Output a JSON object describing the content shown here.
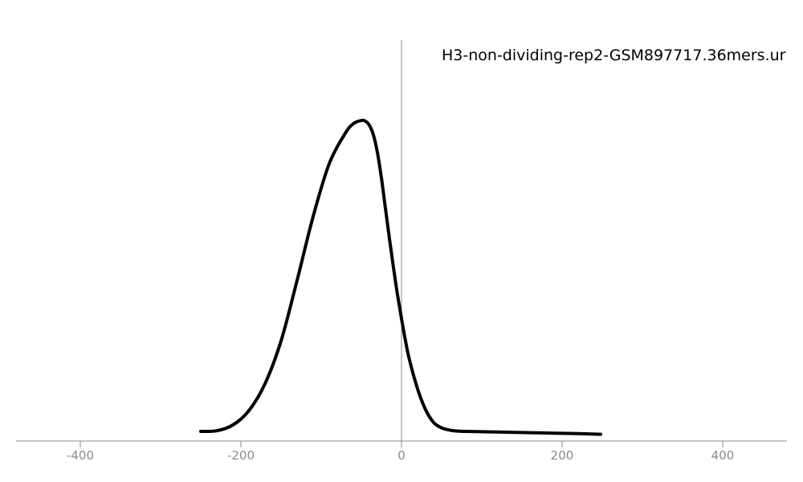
{
  "chart_data": {
    "type": "line",
    "title": "H3-non-dividing-rep2-GSM897717.36mers.ur",
    "xlabel": "",
    "ylabel": "",
    "xlim": [
      -480,
      480
    ],
    "ylim": [
      0,
      1
    ],
    "x_ticks": [
      -400,
      -200,
      0,
      200,
      400
    ],
    "tick_labels": [
      "-400",
      "-200",
      "0",
      "200",
      "400"
    ],
    "grid": false,
    "vertical_reference_line_x": 0,
    "line_color": "#000000",
    "axis_color": "#8a8a8a",
    "series": [
      {
        "x": [
          -250,
          -230,
          -210,
          -190,
          -170,
          -150,
          -130,
          -110,
          -90,
          -70,
          -60,
          -50,
          -45,
          -40,
          -35,
          -30,
          -25,
          -20,
          -15,
          -10,
          -5,
          0,
          5,
          10,
          20,
          30,
          40,
          50,
          60,
          70,
          80,
          100,
          120,
          140,
          160,
          180,
          200,
          220,
          248
        ],
        "y": [
          0.027,
          0.029,
          0.047,
          0.092,
          0.176,
          0.31,
          0.5,
          0.7,
          0.865,
          0.96,
          0.99,
          1.0,
          0.998,
          0.985,
          0.955,
          0.9,
          0.82,
          0.725,
          0.63,
          0.54,
          0.455,
          0.38,
          0.31,
          0.25,
          0.16,
          0.095,
          0.055,
          0.038,
          0.031,
          0.028,
          0.027,
          0.026,
          0.025,
          0.024,
          0.023,
          0.022,
          0.021,
          0.02,
          0.018
        ]
      }
    ]
  }
}
